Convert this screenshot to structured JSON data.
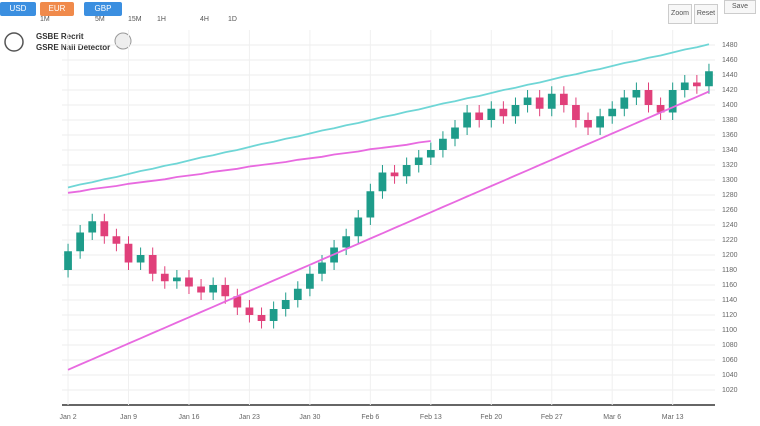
{
  "toolbar": {
    "buttons": [
      "USD",
      "EUR",
      "GBP"
    ],
    "tabs": [
      "1M",
      "5M",
      "15M",
      "1H",
      "4H",
      "1D"
    ],
    "right": [
      "Zoom",
      "Reset",
      "Save"
    ]
  },
  "legend": [
    "GSBE Recrit",
    "GSRE Nall Detector"
  ],
  "chart_data": {
    "type": "candlestick",
    "categories": [
      "Jan 2",
      null,
      null,
      null,
      null,
      "Jan 9",
      null,
      null,
      null,
      null,
      "Jan 16",
      null,
      null,
      null,
      null,
      "Jan 23",
      null,
      null,
      null,
      null,
      "Jan 30",
      null,
      null,
      null,
      null,
      "Feb 6",
      null,
      null,
      null,
      null,
      "Feb 13",
      null,
      null,
      null,
      null,
      "Feb 20",
      null,
      null,
      null,
      null,
      "Feb 27",
      null,
      null,
      null,
      null,
      "Mar 6",
      null,
      null,
      null,
      null,
      "Mar 13",
      null,
      null,
      null
    ],
    "open": [
      1180,
      1205,
      1230,
      1245,
      1225,
      1215,
      1190,
      1200,
      1175,
      1165,
      1170,
      1158,
      1150,
      1160,
      1145,
      1130,
      1120,
      1112,
      1128,
      1140,
      1155,
      1175,
      1190,
      1210,
      1225,
      1250,
      1285,
      1310,
      1305,
      1320,
      1330,
      1340,
      1355,
      1370,
      1390,
      1380,
      1395,
      1385,
      1400,
      1410,
      1395,
      1415,
      1400,
      1380,
      1370,
      1385,
      1395,
      1410,
      1420,
      1400,
      1390,
      1420,
      1430,
      1425
    ],
    "high": [
      1215,
      1240,
      1255,
      1255,
      1235,
      1225,
      1210,
      1210,
      1185,
      1180,
      1180,
      1168,
      1170,
      1170,
      1155,
      1140,
      1130,
      1138,
      1150,
      1165,
      1185,
      1200,
      1220,
      1235,
      1260,
      1295,
      1320,
      1320,
      1330,
      1340,
      1350,
      1365,
      1380,
      1400,
      1400,
      1405,
      1405,
      1410,
      1420,
      1420,
      1425,
      1425,
      1410,
      1390,
      1395,
      1405,
      1420,
      1430,
      1430,
      1410,
      1430,
      1440,
      1440,
      1455
    ],
    "low": [
      1170,
      1195,
      1220,
      1215,
      1205,
      1180,
      1180,
      1165,
      1155,
      1155,
      1148,
      1140,
      1140,
      1135,
      1120,
      1110,
      1102,
      1102,
      1118,
      1130,
      1145,
      1165,
      1180,
      1200,
      1215,
      1240,
      1275,
      1295,
      1295,
      1310,
      1320,
      1330,
      1345,
      1360,
      1370,
      1370,
      1375,
      1375,
      1390,
      1385,
      1385,
      1390,
      1370,
      1360,
      1360,
      1375,
      1385,
      1400,
      1390,
      1380,
      1380,
      1410,
      1415,
      1415
    ],
    "close": [
      1205,
      1230,
      1245,
      1225,
      1215,
      1190,
      1200,
      1175,
      1165,
      1170,
      1158,
      1150,
      1160,
      1145,
      1130,
      1120,
      1112,
      1128,
      1140,
      1155,
      1175,
      1190,
      1210,
      1225,
      1250,
      1285,
      1310,
      1305,
      1320,
      1330,
      1340,
      1355,
      1370,
      1390,
      1380,
      1395,
      1385,
      1400,
      1410,
      1395,
      1415,
      1400,
      1380,
      1370,
      1385,
      1395,
      1410,
      1420,
      1400,
      1390,
      1420,
      1430,
      1425,
      1445
    ],
    "up_color": "#1e9c8a",
    "down_color": "#e0407a",
    "lines": [
      {
        "color": "#6fd6d6",
        "values": [
          1290,
          1294,
          1297,
          1301,
          1304,
          1308,
          1312,
          1315,
          1319,
          1322,
          1326,
          1330,
          1333,
          1337,
          1340,
          1344,
          1348,
          1351,
          1355,
          1358,
          1362,
          1366,
          1369,
          1373,
          1376,
          1380,
          1384,
          1387,
          1391,
          1394,
          1398,
          1402,
          1405,
          1409,
          1412,
          1416,
          1420,
          1423,
          1427,
          1430,
          1434,
          1438,
          1441,
          1445,
          1448,
          1452,
          1456,
          1459,
          1463,
          1466,
          1470,
          1474,
          1477,
          1481
        ]
      },
      {
        "color": "#e86ae0",
        "values": [
          1283,
          1285,
          1288,
          1290,
          1292,
          1295,
          1297,
          1299,
          1301,
          1304,
          1306,
          1308,
          1311,
          1313,
          1315,
          1318,
          1320,
          1322,
          1324,
          1327,
          1329,
          1331,
          1334,
          1336,
          1338,
          1341,
          1343,
          1345,
          1347,
          1350,
          1352,
          null,
          null,
          null,
          null,
          null,
          null,
          null,
          null,
          null,
          null,
          null,
          null,
          null,
          null,
          null,
          null,
          null,
          null,
          null,
          null,
          null,
          null,
          null
        ]
      },
      {
        "color": "#e86ae0",
        "values": [
          1047,
          1054,
          1061,
          1068,
          1075,
          1082,
          1089,
          1096,
          1103,
          1110,
          1117,
          1124,
          1131,
          1138,
          1145,
          1152,
          1159,
          1166,
          1173,
          1180,
          1187,
          1194,
          1201,
          1208,
          1215,
          1222,
          1229,
          1236,
          1243,
          1250,
          1257,
          1264,
          1271,
          1278,
          1285,
          1292,
          1299,
          1306,
          1313,
          1320,
          1327,
          1334,
          1341,
          1348,
          1355,
          1362,
          1369,
          1376,
          1383,
          1390,
          1397,
          1404,
          1411,
          1418
        ]
      }
    ],
    "ylim": [
      1000,
      1500
    ],
    "yticks": [
      1020,
      1040,
      1060,
      1080,
      1100,
      1120,
      1140,
      1160,
      1180,
      1200,
      1220,
      1240,
      1260,
      1280,
      1300,
      1320,
      1340,
      1360,
      1380,
      1400,
      1420,
      1440,
      1460,
      1480
    ],
    "grid": true
  }
}
